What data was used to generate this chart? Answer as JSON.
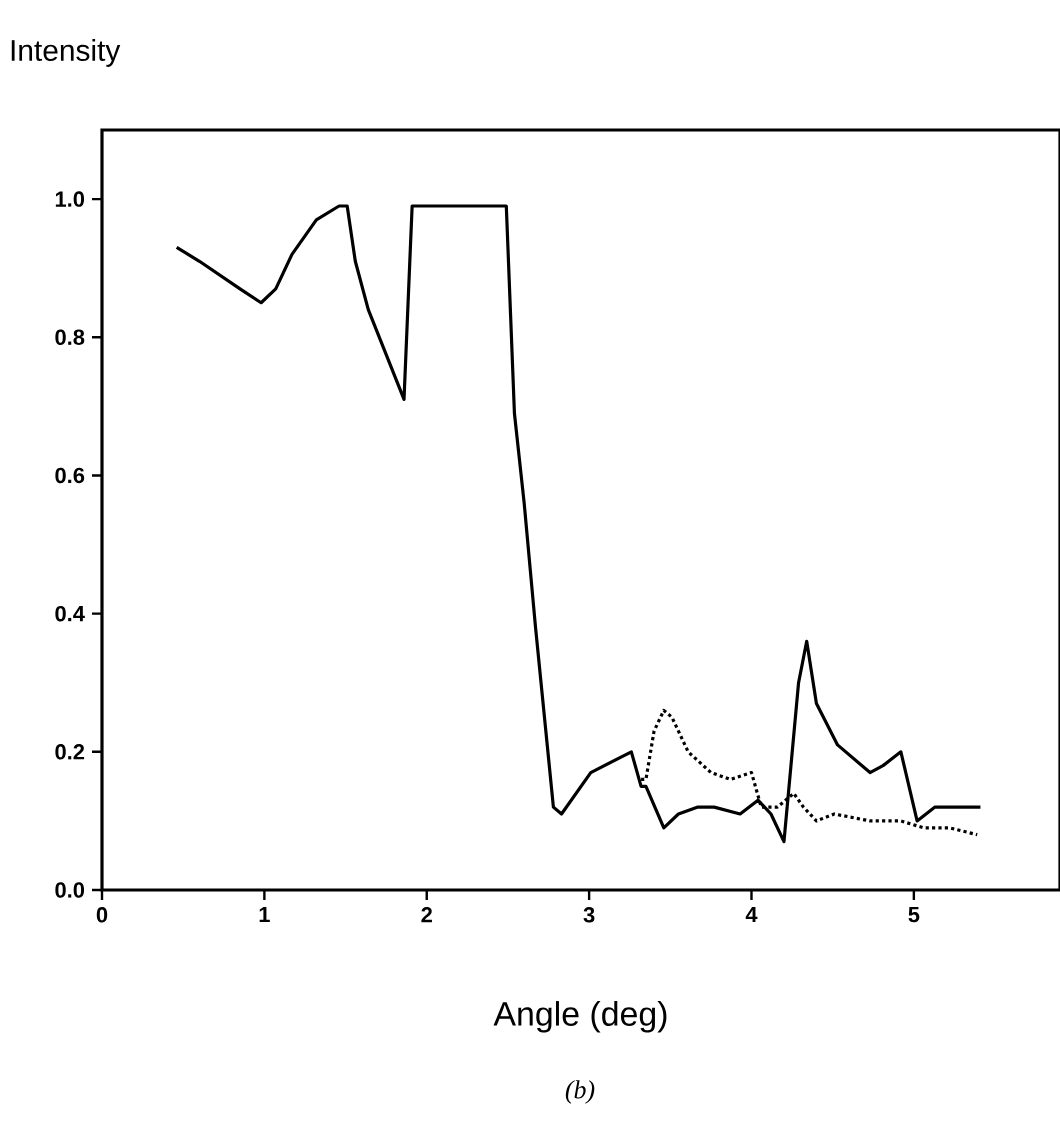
{
  "chart_data": {
    "type": "line",
    "xlabel": "Angle (deg)",
    "ylabel": "Intensity",
    "annotations": [
      "(b)"
    ],
    "xlim": [
      0,
      5.9
    ],
    "ylim": [
      0,
      1.1
    ],
    "xticks": [
      0,
      1,
      2,
      3,
      4,
      5
    ],
    "yticks": [
      {
        "value": 0,
        "label": "0.0"
      },
      {
        "value": 0.2,
        "label": "0.2"
      },
      {
        "value": 0.4,
        "label": "0.4"
      },
      {
        "value": 0.6,
        "label": "0.6"
      },
      {
        "value": 0.8,
        "label": "0.8"
      },
      {
        "value": 1.0,
        "label": "1.0"
      }
    ],
    "grid": false,
    "marker": "none",
    "series": [
      {
        "color": "#000000",
        "line_style": "solid",
        "x": [
          0.46,
          0.6,
          0.85,
          0.98,
          1.07,
          1.17,
          1.32,
          1.46,
          1.51,
          1.56,
          1.64,
          1.86,
          1.91,
          2.2,
          2.26,
          2.49,
          2.54,
          2.6,
          2.67,
          2.78,
          2.83,
          3.01,
          3.26,
          3.32,
          3.35,
          3.46,
          3.55,
          3.67,
          3.77,
          3.93,
          4.04,
          4.12,
          4.2,
          4.29,
          4.34,
          4.4,
          4.53,
          4.73,
          4.81,
          4.92,
          5.02,
          5.13,
          5.41
        ],
        "values": [
          0.93,
          0.91,
          0.87,
          0.85,
          0.87,
          0.92,
          0.97,
          0.99,
          0.99,
          0.91,
          0.84,
          0.71,
          0.99,
          0.99,
          0.99,
          0.99,
          0.69,
          0.56,
          0.38,
          0.12,
          0.11,
          0.17,
          0.2,
          0.15,
          0.15,
          0.09,
          0.11,
          0.12,
          0.12,
          0.11,
          0.13,
          0.11,
          0.07,
          0.3,
          0.36,
          0.27,
          0.21,
          0.17,
          0.18,
          0.2,
          0.1,
          0.12,
          0.12
        ]
      },
      {
        "color": "#000000",
        "line_style": "dotted",
        "x": [
          3.32,
          3.35,
          3.4,
          3.46,
          3.51,
          3.61,
          3.75,
          3.87,
          4.0,
          4.06,
          4.16,
          4.26,
          4.32,
          4.4,
          4.51,
          4.73,
          4.92,
          5.06,
          5.22,
          5.39
        ],
        "values": [
          0.16,
          0.16,
          0.23,
          0.26,
          0.25,
          0.2,
          0.17,
          0.16,
          0.17,
          0.12,
          0.12,
          0.14,
          0.12,
          0.1,
          0.11,
          0.1,
          0.1,
          0.09,
          0.09,
          0.08
        ]
      }
    ]
  }
}
